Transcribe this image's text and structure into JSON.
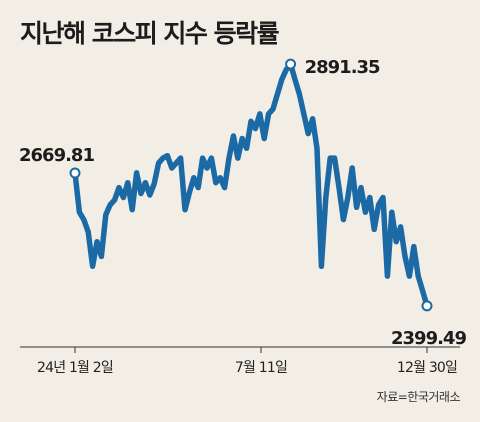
{
  "title": "지난해 코스피 지수 등락률",
  "source": "자료=한국거래소",
  "chart_data": {
    "type": "line",
    "title": "지난해 코스피 지수 등락률",
    "xlabel": "",
    "ylabel": "",
    "ylim": [
      2330,
      2920
    ],
    "grid": false,
    "legend": "none",
    "color": "#1c6aa5",
    "x_ticks": [
      "24년 1월 2일",
      "7월 11일",
      "12월 30일"
    ],
    "annotations": [
      {
        "label": "2669.81",
        "index": 0
      },
      {
        "label": "2891.35",
        "index": 49
      },
      {
        "label": "2399.49",
        "index": 80
      }
    ],
    "values": [
      2669.81,
      2590,
      2575,
      2550,
      2480,
      2530,
      2500,
      2585,
      2605,
      2615,
      2640,
      2620,
      2650,
      2595,
      2670,
      2628,
      2650,
      2625,
      2648,
      2690,
      2700,
      2705,
      2680,
      2690,
      2700,
      2595,
      2630,
      2660,
      2640,
      2700,
      2680,
      2700,
      2650,
      2660,
      2640,
      2700,
      2745,
      2700,
      2740,
      2720,
      2775,
      2760,
      2790,
      2740,
      2790,
      2800,
      2830,
      2860,
      2880,
      2891.35,
      2860,
      2830,
      2790,
      2750,
      2780,
      2720,
      2480,
      2620,
      2700,
      2700,
      2640,
      2575,
      2620,
      2680,
      2600,
      2640,
      2590,
      2620,
      2555,
      2605,
      2620,
      2460,
      2590,
      2530,
      2560,
      2500,
      2460,
      2520,
      2460,
      2430,
      2399.49
    ]
  }
}
